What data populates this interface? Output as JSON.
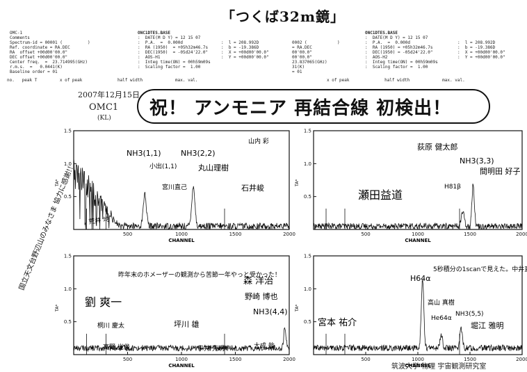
{
  "title": "「つくば32m鏡」",
  "headline": "祝！ アンモニア 再結合線 初検出！",
  "date_note": "2007年12月15日",
  "source_note": "OMC1",
  "source_sub": "(KL)",
  "header": {
    "left_block": "OMC-1\nComments\nSpectrum-id = 00001 (          )\nRef. coordinate = RA.DEC\nRA  offset +00d00'00.0\"\nDEC offset +00d00'00.0\"\nCenter freq.  =  23.714995(GHz)\nr.m.s.  =   0.0441(K)\nBaseline order = 01",
    "mid_title": "ONC1DTES.BASE",
    "mid_block": ":  DATE(M D Y) = 12 15 07\n:  P.A.  =  0.000d\n:  RA (1950)  = +05h32m46.7s\n:  DEC(1950)  = -05d24'22.0\"\n:  AOS-H1\n:  Integ time(ON) = 00h59m09s\n:  Scaling factor =  1.00",
    "mid_block2": ":  l = 208.992D\n:  b = -19.386D\n:  X = +00d00'00.0\"\n:  Y = +00d00'00.0\"",
    "right_id": "0002 (            )\n= RA.DEC\n00'00.0\"\n00'00.0\"\n23.837065(GHz)\n31(K)\n= 01",
    "right_title": "ONC1DTES.BASE",
    "right_block": ":  DATE(M D Y) = 12 15 07\n:  P.A.  =  0.000d\n:  RA (1950) = +05h32m46.7s\n:  DEC(1950) = -05d24'22.0\"\n:  AOS-H2\n:  Integ time(ON) = 00h59m09s\n:  Scaling factor =  1.00",
    "right_block2": ":  l = 208.992D\n:  b = -19.386D\n:  X = +00d00'00.0\"\n:  Y = +00d00'00.0\"",
    "col_labels_left": "no.   peak T         x of peak              half width             max. val.",
    "col_labels_right": "x of peak              half width             max. val."
  },
  "chart_data": [
    {
      "type": "line",
      "xlabel": "CHANNEL",
      "ylabel": "TA*",
      "xlim": [
        0,
        2000
      ],
      "ylim": [
        0,
        1.5
      ],
      "xticks": [
        500,
        1000,
        1500,
        2000
      ],
      "yticks": [
        0.5,
        1.0,
        1.5
      ],
      "baseline": 0.05,
      "noise": 0.05,
      "lines": [
        {
          "center": 660,
          "height": 0.5,
          "width": 14
        },
        {
          "center": 1110,
          "height": 0.62,
          "width": 14
        }
      ],
      "annotations": [
        "NH3(1,1)",
        "NH3(2,2)",
        "小出(1,1)",
        "宮川直己",
        "丸山理樹",
        "石井峻",
        "山内 彩",
        "荒井 均"
      ]
    },
    {
      "type": "line",
      "xlabel": "CHANNEL",
      "ylabel": "TA*",
      "xlim": [
        0,
        2000
      ],
      "ylim": [
        0,
        1.5
      ],
      "xticks": [
        500,
        1000,
        1500,
        2000
      ],
      "yticks": [
        0.5,
        1.0,
        1.5
      ],
      "baseline": 0.05,
      "noise": 0.045,
      "lines": [
        {
          "center": 1430,
          "height": 0.22,
          "width": 14
        },
        {
          "center": 1530,
          "height": 0.62,
          "width": 12
        }
      ],
      "annotations": [
        "荻原 健太郎",
        "NH3(3,3)",
        "H81β",
        "間明田 好子",
        "瀬田益道"
      ]
    },
    {
      "type": "line",
      "xlabel": "CHANNEL",
      "ylabel": "TA*",
      "xlim": [
        0,
        2000
      ],
      "ylim": [
        0,
        1.5
      ],
      "xticks": [
        500,
        1000,
        1500,
        2000
      ],
      "yticks": [
        0.5,
        1.0,
        1.5
      ],
      "baseline": 0.1,
      "noise": 0.045,
      "lines": [
        {
          "center": 1960,
          "height": 0.32,
          "width": 10
        }
      ],
      "annotations": [
        "昨年末のホメーザーの観測から苦節一年やっと受かった！",
        "劉 爽一",
        "森 洋治",
        "野崎 博也",
        "NH3(4,4)",
        "桐川 慶太",
        "坪川 雄",
        "高野 光俊",
        "平井 克明",
        "大成 航"
      ]
    },
    {
      "type": "line",
      "xlabel": "CHANNEL",
      "ylabel": "TA*",
      "xlim": [
        0,
        2000
      ],
      "ylim": [
        0,
        1.5
      ],
      "xticks": [
        500,
        1000,
        1500,
        2000
      ],
      "yticks": [
        0.5,
        1.0,
        1.5
      ],
      "baseline": 0.1,
      "noise": 0.045,
      "lines": [
        {
          "center": 1045,
          "height": 1.05,
          "width": 12
        },
        {
          "center": 1225,
          "height": 0.2,
          "width": 12
        },
        {
          "center": 1415,
          "height": 0.3,
          "width": 12
        }
      ],
      "annotations": [
        "H64α",
        "5秒積分の1scanで見えた。中井直正",
        "高山 真樹",
        "He64α",
        "NH3(5,5)",
        "堀江 雅明",
        "宮本 祐介"
      ]
    }
  ],
  "side_note": "国立天文台野辺山のみなさま 協力に感謝!!",
  "footer_note": "筑波大学 物理 宇宙観測研究室"
}
